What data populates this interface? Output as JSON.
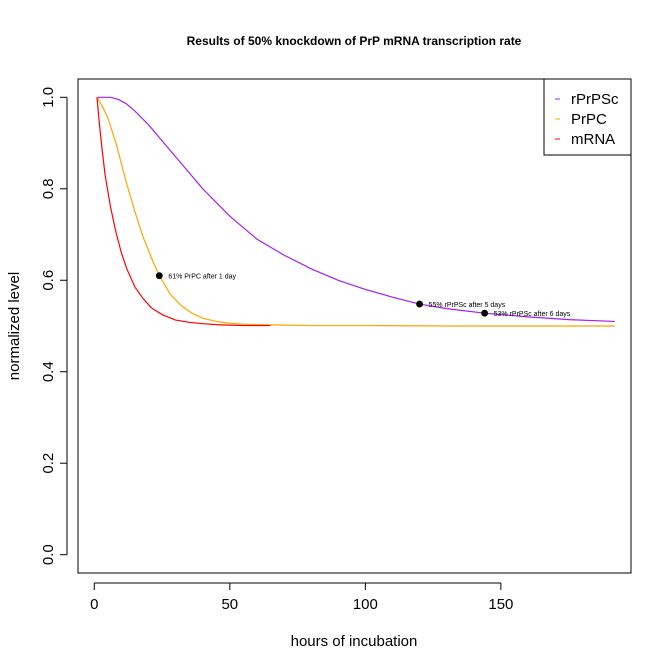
{
  "chart_data": {
    "type": "line",
    "title": "Results of 50% knockdown of PrP mRNA transcription rate",
    "xlabel": "hours of incubation",
    "ylabel": "normalized level",
    "xlim": [
      -6,
      198
    ],
    "ylim": [
      -0.04,
      1.04
    ],
    "xticks": [
      0,
      50,
      100,
      150
    ],
    "yticks": [
      0.0,
      0.2,
      0.4,
      0.6,
      0.8,
      1.0
    ],
    "ytick_labels": [
      "0.0",
      "0.2",
      "0.4",
      "0.6",
      "0.8",
      "1.0"
    ],
    "grid": false,
    "legend_position": "top-right",
    "series": [
      {
        "name": "rPrPSc",
        "color": "#a020f0",
        "x": [
          1,
          3,
          6,
          9,
          12,
          15,
          20,
          25,
          30,
          40,
          50,
          60,
          70,
          80,
          90,
          100,
          110,
          120,
          130,
          144,
          160,
          175,
          192
        ],
        "y": [
          1.0,
          1.0,
          1.0,
          0.995,
          0.985,
          0.97,
          0.94,
          0.905,
          0.87,
          0.8,
          0.74,
          0.69,
          0.655,
          0.625,
          0.6,
          0.58,
          0.563,
          0.548,
          0.538,
          0.528,
          0.52,
          0.514,
          0.51
        ]
      },
      {
        "name": "PrPC",
        "color": "#ffa500",
        "x": [
          1,
          3,
          5,
          8,
          10,
          12,
          15,
          18,
          21,
          24,
          28,
          32,
          36,
          40,
          45,
          50,
          55,
          60,
          70,
          80,
          100,
          130,
          160,
          192
        ],
        "y": [
          1.0,
          0.98,
          0.955,
          0.9,
          0.855,
          0.81,
          0.75,
          0.695,
          0.65,
          0.61,
          0.57,
          0.545,
          0.528,
          0.517,
          0.51,
          0.506,
          0.504,
          0.503,
          0.502,
          0.501,
          0.501,
          0.5,
          0.5,
          0.5
        ]
      },
      {
        "name": "mRNA",
        "color": "#ff0000",
        "x": [
          1,
          2,
          3,
          4,
          6,
          8,
          10,
          12,
          15,
          18,
          21,
          25,
          30,
          35,
          40,
          45,
          50,
          55,
          60,
          65
        ],
        "y": [
          1.0,
          0.935,
          0.88,
          0.83,
          0.76,
          0.705,
          0.66,
          0.625,
          0.585,
          0.56,
          0.54,
          0.525,
          0.513,
          0.508,
          0.505,
          0.503,
          0.502,
          0.501,
          0.501,
          0.501
        ]
      }
    ],
    "annotations": [
      {
        "x": 24,
        "y": 0.61,
        "text": "61% PrPC after 1 day"
      },
      {
        "x": 120,
        "y": 0.548,
        "text": "55% rPrPSc after 5 days"
      },
      {
        "x": 144,
        "y": 0.528,
        "text": "53% rPrPSc after 6 days"
      }
    ]
  }
}
